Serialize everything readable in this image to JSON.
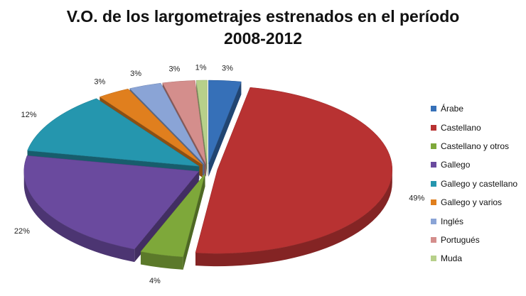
{
  "chart_data": {
    "type": "pie",
    "title": [
      "V.O. de los largometrajes estrenados en el período",
      "2008-2012"
    ],
    "slices": [
      {
        "name": "Árabe",
        "value": 3,
        "label": "3%",
        "color": "#3670B8"
      },
      {
        "name": "Castellano",
        "value": 49,
        "label": "49%",
        "color": "#B83232"
      },
      {
        "name": "Castellano y otros",
        "value": 4,
        "label": "4%",
        "color": "#7EA83A"
      },
      {
        "name": "Gallego",
        "value": 22,
        "label": "22%",
        "color": "#6A4A9E"
      },
      {
        "name": "Gallego y castellano",
        "value": 12,
        "label": "12%",
        "color": "#2596AE"
      },
      {
        "name": "Gallego y varios",
        "value": 3,
        "label": "3%",
        "color": "#E07F1E"
      },
      {
        "name": "Inglés",
        "value": 3,
        "label": "3%",
        "color": "#8AA4D6"
      },
      {
        "name": "Portugués",
        "value": 3,
        "label": "3%",
        "color": "#D48E8C"
      },
      {
        "name": "Muda",
        "value": 1,
        "label": "1%",
        "color": "#B7D08A"
      }
    ],
    "legend_position": "right",
    "exploded": true,
    "three_d": true
  }
}
